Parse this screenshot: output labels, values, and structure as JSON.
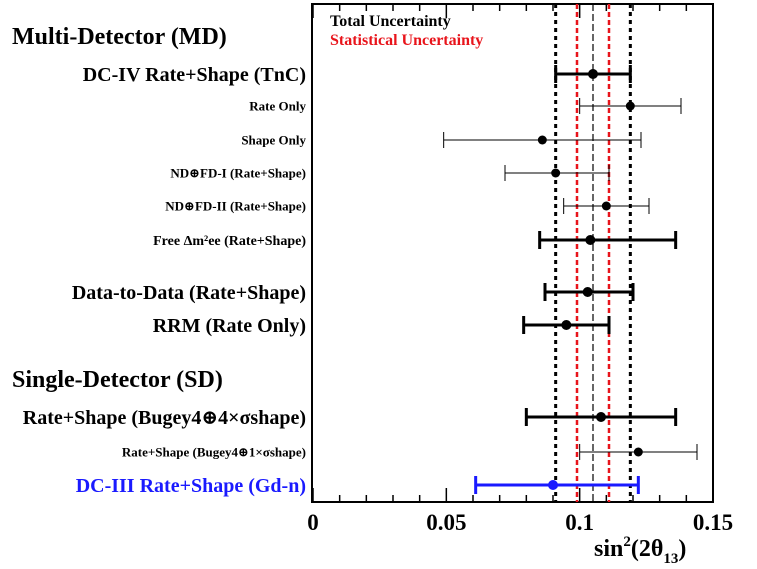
{
  "chart_data": {
    "type": "scatter",
    "xlabel": "sin²(2θ₁₃)",
    "xlim": [
      0,
      0.15
    ],
    "xticks": [
      "0",
      "0.05",
      "0.1",
      "0.15"
    ],
    "legend": {
      "placement": "top-left",
      "entries": [
        {
          "name": "Total Uncertainty",
          "color": "#000000"
        },
        {
          "name": "Statistical Uncertainty",
          "color": "#e8141b"
        }
      ]
    },
    "reference": {
      "central": 0.105,
      "total_band": [
        0.091,
        0.119
      ],
      "stat_band": [
        0.099,
        0.111
      ]
    },
    "sections": [
      {
        "title": "Multi-Detector (MD)"
      },
      {
        "title": "Single-Detector (SD)"
      }
    ],
    "measurements": [
      {
        "label": "DC-IV Rate+Shape (TnC)",
        "value": 0.105,
        "low": 0.091,
        "high": 0.119,
        "style": "bold",
        "color": "#000000"
      },
      {
        "label": "Rate Only",
        "value": 0.119,
        "low": 0.1,
        "high": 0.138,
        "style": "small",
        "color": "#000000"
      },
      {
        "label": "Shape Only",
        "value": 0.086,
        "low": 0.049,
        "high": 0.123,
        "style": "small",
        "color": "#000000"
      },
      {
        "label": "ND⊕FD-I (Rate+Shape)",
        "value": 0.091,
        "low": 0.072,
        "high": 0.111,
        "style": "small",
        "color": "#000000"
      },
      {
        "label": "ND⊕FD-II (Rate+Shape)",
        "value": 0.11,
        "low": 0.094,
        "high": 0.126,
        "style": "small",
        "color": "#000000"
      },
      {
        "label": "Free  Δm²ee (Rate+Shape)",
        "value": 0.104,
        "low": 0.085,
        "high": 0.136,
        "style": "mid",
        "color": "#000000"
      },
      {
        "label": "Data-to-Data (Rate+Shape)",
        "value": 0.103,
        "low": 0.087,
        "high": 0.12,
        "style": "bold",
        "color": "#000000"
      },
      {
        "label": "RRM (Rate Only)",
        "value": 0.095,
        "low": 0.079,
        "high": 0.111,
        "style": "bold",
        "color": "#000000"
      },
      {
        "label": "Rate+Shape (Bugey4⊕4×σshape)",
        "value": 0.108,
        "low": 0.08,
        "high": 0.136,
        "style": "bold",
        "color": "#000000"
      },
      {
        "label": "Rate+Shape (Bugey4⊕1×σshape)",
        "value": 0.122,
        "low": 0.1,
        "high": 0.144,
        "style": "small",
        "color": "#000000"
      },
      {
        "label": "DC-III Rate+Shape (Gd-n)",
        "value": 0.09,
        "low": 0.061,
        "high": 0.122,
        "style": "bold",
        "color": "#1a1aff"
      }
    ]
  }
}
